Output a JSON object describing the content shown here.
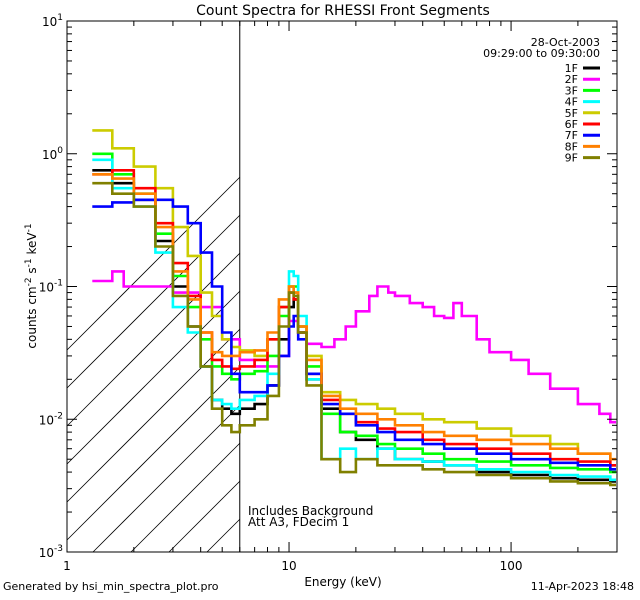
{
  "chart_data": {
    "type": "line",
    "title": "Count Spectra for RHESSI Front Segments",
    "xlabel": "Energy (keV)",
    "ylabel_parts": [
      "counts cm",
      "-2",
      " s",
      "-1",
      " keV",
      "-1"
    ],
    "xscale": "log",
    "yscale": "log",
    "xlim": [
      1,
      300
    ],
    "ylim": [
      0.001,
      10
    ],
    "x_ticks": [
      {
        "value": 1,
        "label": "1"
      },
      {
        "value": 10,
        "label": "10"
      },
      {
        "value": 100,
        "label": "100"
      }
    ],
    "y_ticks": [
      {
        "value": 0.001,
        "base": "10",
        "exp": "-3"
      },
      {
        "value": 0.01,
        "base": "10",
        "exp": "-2"
      },
      {
        "value": 0.1,
        "base": "10",
        "exp": "-1"
      },
      {
        "value": 1,
        "base": "10",
        "exp": "0"
      },
      {
        "value": 10,
        "base": "10",
        "exp": "1"
      }
    ],
    "date": "28-Oct-2003",
    "time_range": "09:29:00 to 09:30:00",
    "annotations": [
      "Includes Background",
      "Att A3, FDecim 1"
    ],
    "hatched_region_keV": [
      1,
      6
    ],
    "legend_position": "top-right",
    "series": [
      {
        "name": "1F",
        "color": "#000000",
        "points": [
          [
            1.3,
            0.75
          ],
          [
            1.6,
            0.6
          ],
          [
            2,
            0.45
          ],
          [
            2.5,
            0.22
          ],
          [
            3,
            0.1
          ],
          [
            3.5,
            0.05
          ],
          [
            4,
            0.025
          ],
          [
            4.5,
            0.014
          ],
          [
            5,
            0.012
          ],
          [
            5.5,
            0.011
          ],
          [
            6,
            0.012
          ],
          [
            7,
            0.013
          ],
          [
            8,
            0.018
          ],
          [
            9,
            0.04
          ],
          [
            10,
            0.07
          ],
          [
            10.5,
            0.08
          ],
          [
            11,
            0.045
          ],
          [
            12,
            0.02
          ],
          [
            14,
            0.012
          ],
          [
            17,
            0.008
          ],
          [
            20,
            0.007
          ],
          [
            25,
            0.006
          ],
          [
            30,
            0.005
          ],
          [
            40,
            0.0048
          ],
          [
            50,
            0.0045
          ],
          [
            70,
            0.004
          ],
          [
            100,
            0.0038
          ],
          [
            150,
            0.0036
          ],
          [
            200,
            0.0035
          ],
          [
            280,
            0.0034
          ]
        ]
      },
      {
        "name": "2F",
        "color": "#ff00ff",
        "points": [
          [
            1.3,
            0.11
          ],
          [
            1.6,
            0.13
          ],
          [
            1.8,
            0.1
          ],
          [
            2.5,
            0.1
          ],
          [
            3,
            0.09
          ],
          [
            4,
            0.07
          ],
          [
            5,
            0.04
          ],
          [
            6,
            0.028
          ],
          [
            7,
            0.025
          ],
          [
            8,
            0.025
          ],
          [
            9,
            0.03
          ],
          [
            10,
            0.055
          ],
          [
            11,
            0.05
          ],
          [
            12,
            0.037
          ],
          [
            14,
            0.035
          ],
          [
            16,
            0.04
          ],
          [
            18,
            0.05
          ],
          [
            20,
            0.065
          ],
          [
            23,
            0.085
          ],
          [
            25,
            0.1
          ],
          [
            28,
            0.09
          ],
          [
            30,
            0.085
          ],
          [
            35,
            0.075
          ],
          [
            40,
            0.07
          ],
          [
            45,
            0.06
          ],
          [
            50,
            0.058
          ],
          [
            55,
            0.075
          ],
          [
            60,
            0.06
          ],
          [
            70,
            0.04
          ],
          [
            80,
            0.032
          ],
          [
            100,
            0.028
          ],
          [
            120,
            0.022
          ],
          [
            150,
            0.017
          ],
          [
            200,
            0.013
          ],
          [
            250,
            0.011
          ],
          [
            280,
            0.0095
          ]
        ]
      },
      {
        "name": "3F",
        "color": "#00ff00",
        "points": [
          [
            1.3,
            1.0
          ],
          [
            1.6,
            0.7
          ],
          [
            2,
            0.5
          ],
          [
            2.5,
            0.25
          ],
          [
            3,
            0.12
          ],
          [
            3.5,
            0.07
          ],
          [
            4,
            0.04
          ],
          [
            4.5,
            0.025
          ],
          [
            5,
            0.022
          ],
          [
            5.5,
            0.02
          ],
          [
            6,
            0.022
          ],
          [
            7,
            0.023
          ],
          [
            8,
            0.03
          ],
          [
            9,
            0.06
          ],
          [
            10,
            0.1
          ],
          [
            10.5,
            0.1
          ],
          [
            11,
            0.05
          ],
          [
            12,
            0.025
          ],
          [
            14,
            0.011
          ],
          [
            17,
            0.008
          ],
          [
            20,
            0.0075
          ],
          [
            25,
            0.0065
          ],
          [
            30,
            0.006
          ],
          [
            40,
            0.0055
          ],
          [
            50,
            0.005
          ],
          [
            70,
            0.0048
          ],
          [
            100,
            0.0045
          ],
          [
            150,
            0.0043
          ],
          [
            200,
            0.0042
          ],
          [
            280,
            0.004
          ]
        ]
      },
      {
        "name": "4F",
        "color": "#00ffff",
        "points": [
          [
            1.3,
            0.9
          ],
          [
            1.6,
            0.55
          ],
          [
            2,
            0.4
          ],
          [
            2.5,
            0.18
          ],
          [
            3,
            0.07
          ],
          [
            3.5,
            0.045
          ],
          [
            4,
            0.025
          ],
          [
            4.5,
            0.014
          ],
          [
            5,
            0.013
          ],
          [
            5.5,
            0.012
          ],
          [
            6,
            0.014
          ],
          [
            7,
            0.015
          ],
          [
            8,
            0.022
          ],
          [
            9,
            0.07
          ],
          [
            10,
            0.13
          ],
          [
            10.5,
            0.12
          ],
          [
            11,
            0.06
          ],
          [
            12,
            0.02
          ],
          [
            14,
            0.005
          ],
          [
            17,
            0.006
          ],
          [
            20,
            0.005
          ],
          [
            25,
            0.006
          ],
          [
            30,
            0.005
          ],
          [
            40,
            0.0048
          ],
          [
            50,
            0.0045
          ],
          [
            70,
            0.0042
          ],
          [
            100,
            0.004
          ],
          [
            150,
            0.0038
          ],
          [
            200,
            0.0037
          ],
          [
            280,
            0.0035
          ]
        ]
      },
      {
        "name": "5F",
        "color": "#cccc00",
        "points": [
          [
            1.3,
            1.5
          ],
          [
            1.6,
            1.1
          ],
          [
            2,
            0.8
          ],
          [
            2.5,
            0.55
          ],
          [
            3,
            0.28
          ],
          [
            3.5,
            0.17
          ],
          [
            4,
            0.09
          ],
          [
            4.5,
            0.06
          ],
          [
            5,
            0.04
          ],
          [
            5.5,
            0.035
          ],
          [
            6,
            0.033
          ],
          [
            7,
            0.03
          ],
          [
            8,
            0.04
          ],
          [
            9,
            0.07
          ],
          [
            10,
            0.1
          ],
          [
            10.5,
            0.09
          ],
          [
            11,
            0.05
          ],
          [
            12,
            0.03
          ],
          [
            14,
            0.016
          ],
          [
            17,
            0.014
          ],
          [
            20,
            0.013
          ],
          [
            25,
            0.012
          ],
          [
            30,
            0.011
          ],
          [
            40,
            0.01
          ],
          [
            50,
            0.0095
          ],
          [
            70,
            0.0085
          ],
          [
            100,
            0.0075
          ],
          [
            150,
            0.0065
          ],
          [
            200,
            0.0055
          ],
          [
            280,
            0.0045
          ]
        ]
      },
      {
        "name": "6F",
        "color": "#ff0000",
        "points": [
          [
            1.3,
            0.7
          ],
          [
            1.6,
            0.75
          ],
          [
            2,
            0.55
          ],
          [
            2.5,
            0.3
          ],
          [
            3,
            0.15
          ],
          [
            3.5,
            0.085
          ],
          [
            4,
            0.045
          ],
          [
            4.5,
            0.028
          ],
          [
            5,
            0.025
          ],
          [
            5.5,
            0.024
          ],
          [
            6,
            0.025
          ],
          [
            7,
            0.028
          ],
          [
            8,
            0.04
          ],
          [
            9,
            0.07
          ],
          [
            10,
            0.09
          ],
          [
            10.5,
            0.08
          ],
          [
            11,
            0.045
          ],
          [
            12,
            0.022
          ],
          [
            14,
            0.014
          ],
          [
            17,
            0.011
          ],
          [
            20,
            0.0095
          ],
          [
            25,
            0.0085
          ],
          [
            30,
            0.008
          ],
          [
            40,
            0.007
          ],
          [
            50,
            0.0065
          ],
          [
            70,
            0.006
          ],
          [
            100,
            0.0055
          ],
          [
            150,
            0.005
          ],
          [
            200,
            0.0048
          ],
          [
            280,
            0.0045
          ]
        ]
      },
      {
        "name": "7F",
        "color": "#0000ff",
        "points": [
          [
            1.3,
            0.4
          ],
          [
            1.6,
            0.43
          ],
          [
            2,
            0.45
          ],
          [
            2.5,
            0.45
          ],
          [
            3,
            0.4
          ],
          [
            3.5,
            0.3
          ],
          [
            4,
            0.18
          ],
          [
            4.5,
            0.1
          ],
          [
            5,
            0.045
          ],
          [
            5.5,
            0.022
          ],
          [
            6,
            0.016
          ],
          [
            7,
            0.016
          ],
          [
            8,
            0.018
          ],
          [
            9,
            0.03
          ],
          [
            10,
            0.05
          ],
          [
            10.5,
            0.06
          ],
          [
            11,
            0.04
          ],
          [
            12,
            0.022
          ],
          [
            14,
            0.013
          ],
          [
            17,
            0.011
          ],
          [
            20,
            0.009
          ],
          [
            25,
            0.008
          ],
          [
            30,
            0.007
          ],
          [
            40,
            0.0065
          ],
          [
            50,
            0.006
          ],
          [
            70,
            0.0055
          ],
          [
            100,
            0.005
          ],
          [
            150,
            0.0047
          ],
          [
            200,
            0.0045
          ],
          [
            280,
            0.0042
          ]
        ]
      },
      {
        "name": "8F",
        "color": "#ff8000",
        "points": [
          [
            1.3,
            0.7
          ],
          [
            1.6,
            0.65
          ],
          [
            2,
            0.5
          ],
          [
            2.5,
            0.28
          ],
          [
            3,
            0.13
          ],
          [
            3.5,
            0.08
          ],
          [
            4,
            0.045
          ],
          [
            4.5,
            0.032
          ],
          [
            5,
            0.03
          ],
          [
            5.5,
            0.03
          ],
          [
            6,
            0.032
          ],
          [
            7,
            0.033
          ],
          [
            8,
            0.045
          ],
          [
            9,
            0.08
          ],
          [
            10,
            0.1
          ],
          [
            10.5,
            0.09
          ],
          [
            11,
            0.05
          ],
          [
            12,
            0.028
          ],
          [
            14,
            0.015
          ],
          [
            17,
            0.012
          ],
          [
            20,
            0.011
          ],
          [
            25,
            0.01
          ],
          [
            30,
            0.009
          ],
          [
            40,
            0.008
          ],
          [
            50,
            0.0075
          ],
          [
            70,
            0.007
          ],
          [
            100,
            0.0065
          ],
          [
            150,
            0.006
          ],
          [
            200,
            0.0055
          ],
          [
            280,
            0.005
          ]
        ]
      },
      {
        "name": "9F",
        "color": "#808000",
        "points": [
          [
            1.3,
            0.6
          ],
          [
            1.6,
            0.5
          ],
          [
            2,
            0.4
          ],
          [
            2.5,
            0.2
          ],
          [
            3,
            0.085
          ],
          [
            3.5,
            0.05
          ],
          [
            4,
            0.025
          ],
          [
            4.5,
            0.012
          ],
          [
            5,
            0.009
          ],
          [
            5.5,
            0.008
          ],
          [
            6,
            0.009
          ],
          [
            7,
            0.01
          ],
          [
            8,
            0.015
          ],
          [
            9,
            0.05
          ],
          [
            10,
            0.09
          ],
          [
            10.5,
            0.085
          ],
          [
            11,
            0.045
          ],
          [
            12,
            0.018
          ],
          [
            14,
            0.005
          ],
          [
            17,
            0.004
          ],
          [
            20,
            0.005
          ],
          [
            25,
            0.0045
          ],
          [
            30,
            0.0045
          ],
          [
            40,
            0.0042
          ],
          [
            50,
            0.004
          ],
          [
            70,
            0.0038
          ],
          [
            100,
            0.0036
          ],
          [
            150,
            0.0034
          ],
          [
            200,
            0.0033
          ],
          [
            280,
            0.0032
          ]
        ]
      }
    ]
  },
  "footer": {
    "left": "Generated by hsi_min_spectra_plot.pro",
    "right": "11-Apr-2023 18:48"
  }
}
